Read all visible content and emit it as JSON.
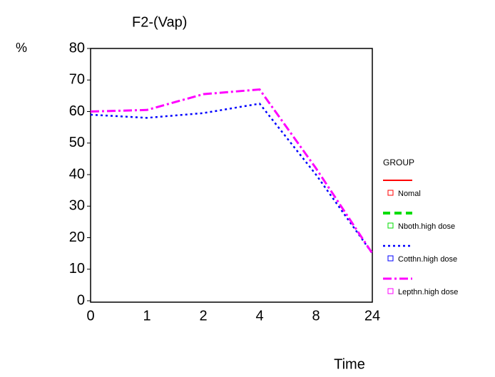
{
  "chart_data": {
    "type": "line",
    "title": "F2-(Vap)",
    "y_label": "%",
    "x_label": "Time",
    "categories": [
      "0",
      "1",
      "2",
      "4",
      "8",
      "24"
    ],
    "ylim": [
      0,
      80
    ],
    "yticks": [
      0,
      10,
      20,
      30,
      40,
      50,
      60,
      70,
      80
    ],
    "legend_title": "GROUP",
    "series": [
      {
        "name": "Nomal",
        "color": "#ff0000",
        "dash": "solid",
        "values": [
          null,
          null,
          null,
          null,
          null,
          null
        ]
      },
      {
        "name": "Nboth.high dose",
        "color": "#00dd00",
        "dash": "dashed",
        "values": [
          null,
          null,
          null,
          null,
          null,
          null
        ]
      },
      {
        "name": "Cotthn.high dose",
        "color": "#0000ff",
        "dash": "dotted",
        "values": [
          59,
          58,
          59.5,
          62.5,
          40,
          15
        ]
      },
      {
        "name": "Lepthn.high dose",
        "color": "#ff00ff",
        "dash": "dashdot",
        "values": [
          60,
          60.5,
          65.5,
          67,
          42,
          15
        ]
      }
    ]
  }
}
